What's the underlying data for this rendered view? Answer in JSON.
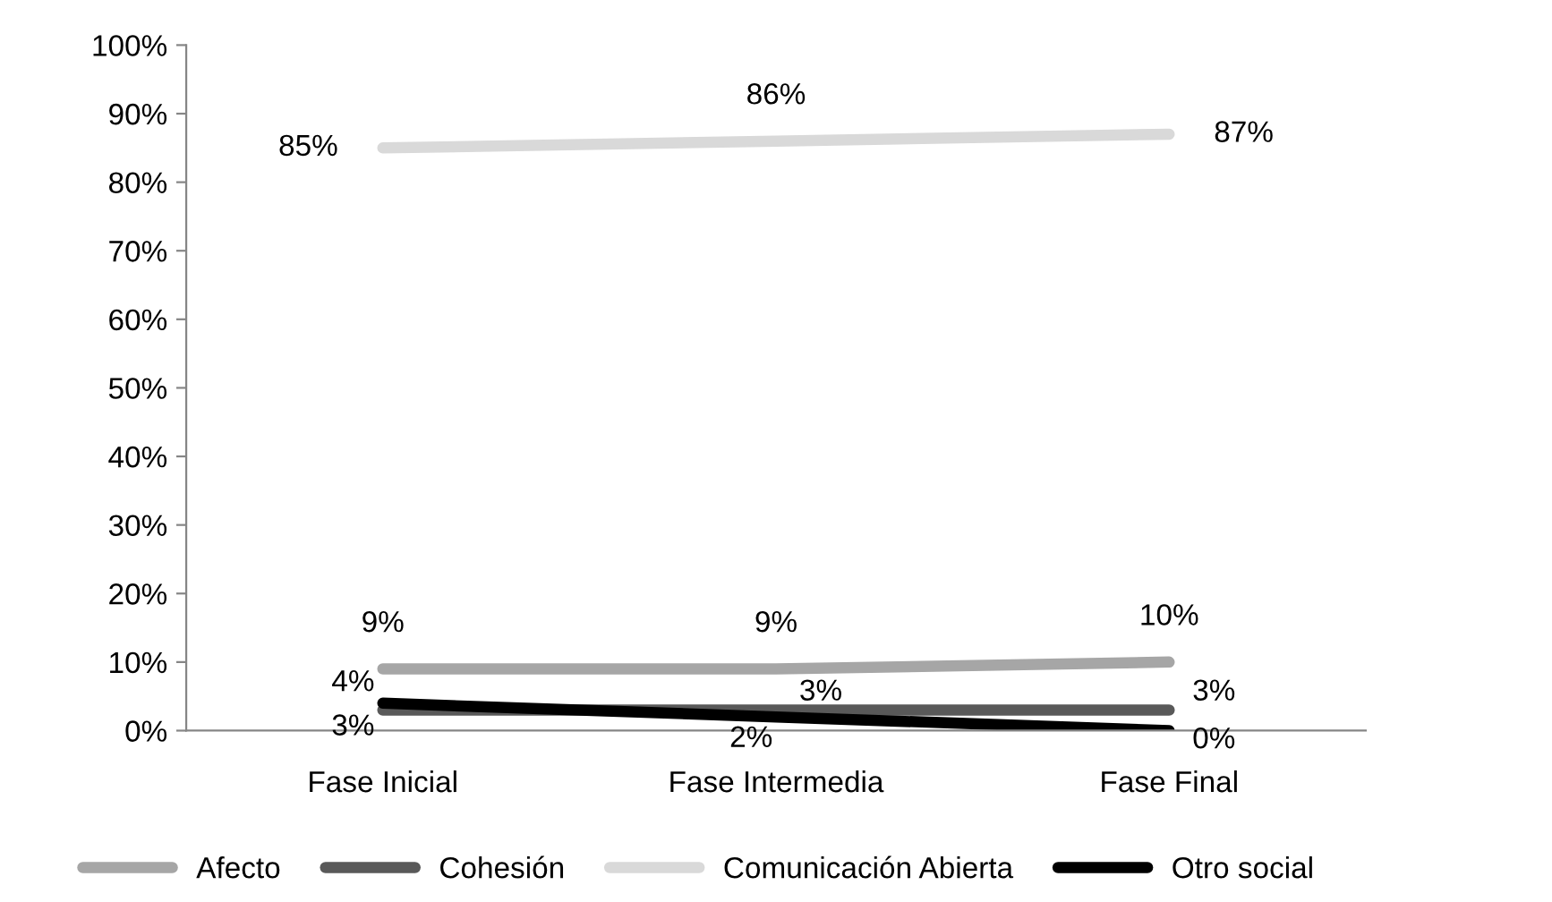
{
  "chart_data": {
    "type": "line",
    "categories": [
      "Fase Inicial",
      "Fase Intermedia",
      "Fase Final"
    ],
    "series": [
      {
        "name": "Afecto",
        "color": "#a6a6a6",
        "values": [
          9,
          9,
          10
        ],
        "value_labels": [
          "9%",
          "9%",
          "10%"
        ]
      },
      {
        "name": "Cohesión",
        "color": "#595959",
        "values": [
          3,
          3,
          3
        ],
        "value_labels": [
          "3%",
          "3%",
          "3%"
        ]
      },
      {
        "name": "Comunicación Abierta",
        "color": "#d9d9d9",
        "values": [
          85,
          86,
          87
        ],
        "value_labels": [
          "85%",
          "86%",
          "87%"
        ]
      },
      {
        "name": "Otro social",
        "color": "#000000",
        "values": [
          4,
          2,
          0
        ],
        "value_labels": [
          "4%",
          "2%",
          "0%"
        ]
      }
    ],
    "ylim": [
      0,
      100
    ],
    "yticks": [
      {
        "value": 0,
        "label": "0%"
      },
      {
        "value": 10,
        "label": "10%"
      },
      {
        "value": 20,
        "label": "20%"
      },
      {
        "value": 30,
        "label": "30%"
      },
      {
        "value": 40,
        "label": "40%"
      },
      {
        "value": 50,
        "label": "50%"
      },
      {
        "value": 60,
        "label": "60%"
      },
      {
        "value": 70,
        "label": "70%"
      },
      {
        "value": 80,
        "label": "80%"
      },
      {
        "value": 90,
        "label": "90%"
      },
      {
        "value": 100,
        "label": "100%"
      }
    ],
    "grid": false,
    "legend": "bottom",
    "marker": "none",
    "line_style": "solid"
  }
}
